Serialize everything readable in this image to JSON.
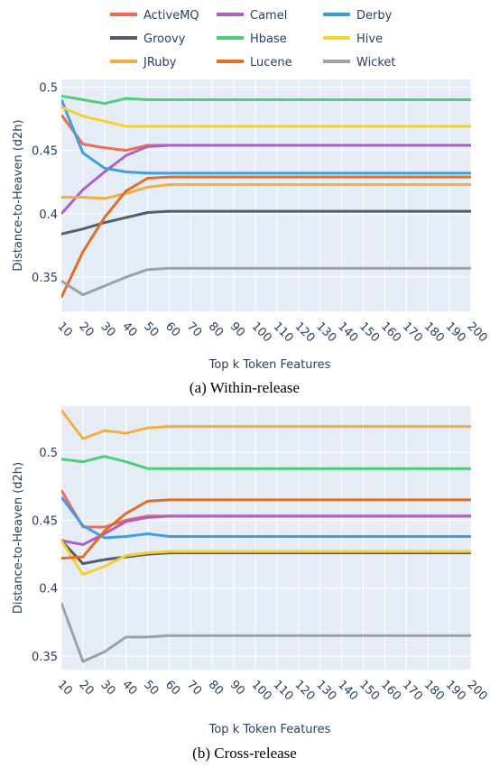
{
  "chart_data": [
    {
      "type": "line",
      "y_label": "Distance-to-Heaven (d2h)",
      "x_label": "Top k Token Features",
      "caption": "(a) Within-release",
      "x": [
        10,
        20,
        30,
        40,
        50,
        60,
        70,
        80,
        90,
        100,
        110,
        120,
        130,
        140,
        150,
        160,
        170,
        180,
        190,
        200
      ],
      "xlim": [
        10,
        200
      ],
      "xticks": [
        10,
        20,
        30,
        40,
        50,
        60,
        70,
        80,
        90,
        100,
        110,
        120,
        130,
        140,
        150,
        160,
        170,
        180,
        190,
        200
      ],
      "ylim": [
        0.323,
        0.506
      ],
      "yticks": [
        0.35,
        0.4,
        0.45,
        0.5
      ],
      "grid": true,
      "series": [
        {
          "name": "ActiveMQ",
          "color": "#ef6b5b",
          "values": [
            0.478,
            0.455,
            0.452,
            0.45,
            0.454,
            0.454,
            0.454,
            0.454,
            0.454,
            0.454,
            0.454,
            0.454,
            0.454,
            0.454,
            0.454,
            0.454,
            0.454,
            0.454,
            0.454,
            0.454
          ]
        },
        {
          "name": "Camel",
          "color": "#a962c5",
          "values": [
            0.4,
            0.419,
            0.433,
            0.446,
            0.453,
            0.454,
            0.454,
            0.454,
            0.454,
            0.454,
            0.454,
            0.454,
            0.454,
            0.454,
            0.454,
            0.454,
            0.454,
            0.454,
            0.454,
            0.454
          ]
        },
        {
          "name": "Derby",
          "color": "#3f9fdc",
          "values": [
            0.49,
            0.448,
            0.436,
            0.433,
            0.432,
            0.432,
            0.432,
            0.432,
            0.432,
            0.432,
            0.432,
            0.432,
            0.432,
            0.432,
            0.432,
            0.432,
            0.432,
            0.432,
            0.432,
            0.432
          ]
        },
        {
          "name": "Groovy",
          "color": "#535d6d",
          "values": [
            0.384,
            0.388,
            0.393,
            0.397,
            0.401,
            0.402,
            0.402,
            0.402,
            0.402,
            0.402,
            0.402,
            0.402,
            0.402,
            0.402,
            0.402,
            0.402,
            0.402,
            0.402,
            0.402,
            0.402
          ]
        },
        {
          "name": "Hbase",
          "color": "#4bcf7a",
          "values": [
            0.493,
            0.49,
            0.487,
            0.491,
            0.49,
            0.49,
            0.49,
            0.49,
            0.49,
            0.49,
            0.49,
            0.49,
            0.49,
            0.49,
            0.49,
            0.49,
            0.49,
            0.49,
            0.49,
            0.49
          ]
        },
        {
          "name": "Hive",
          "color": "#f4d032",
          "values": [
            0.484,
            0.477,
            0.473,
            0.469,
            0.469,
            0.469,
            0.469,
            0.469,
            0.469,
            0.469,
            0.469,
            0.469,
            0.469,
            0.469,
            0.469,
            0.469,
            0.469,
            0.469,
            0.469,
            0.469
          ]
        },
        {
          "name": "JRuby",
          "color": "#f3ae42",
          "values": [
            0.413,
            0.413,
            0.412,
            0.416,
            0.421,
            0.423,
            0.423,
            0.423,
            0.423,
            0.423,
            0.423,
            0.423,
            0.423,
            0.423,
            0.423,
            0.423,
            0.423,
            0.423,
            0.423,
            0.423
          ]
        },
        {
          "name": "Lucene",
          "color": "#df6e27",
          "values": [
            0.334,
            0.37,
            0.397,
            0.418,
            0.428,
            0.429,
            0.429,
            0.429,
            0.429,
            0.429,
            0.429,
            0.429,
            0.429,
            0.429,
            0.429,
            0.429,
            0.429,
            0.429,
            0.429,
            0.429
          ]
        },
        {
          "name": "Wicket",
          "color": "#9da2a7",
          "values": [
            0.347,
            0.336,
            0.343,
            0.35,
            0.356,
            0.357,
            0.357,
            0.357,
            0.357,
            0.357,
            0.357,
            0.357,
            0.357,
            0.357,
            0.357,
            0.357,
            0.357,
            0.357,
            0.357,
            0.357
          ]
        }
      ]
    },
    {
      "type": "line",
      "y_label": "Distance-to-Heaven (d2h)",
      "x_label": "Top k Token Features",
      "caption": "(b) Cross-release",
      "x": [
        10,
        20,
        30,
        40,
        50,
        60,
        70,
        80,
        90,
        100,
        110,
        120,
        130,
        140,
        150,
        160,
        170,
        180,
        190,
        200
      ],
      "xlim": [
        10,
        200
      ],
      "xticks": [
        10,
        20,
        30,
        40,
        50,
        60,
        70,
        80,
        90,
        100,
        110,
        120,
        130,
        140,
        150,
        160,
        170,
        180,
        190,
        200
      ],
      "ylim": [
        0.34,
        0.534
      ],
      "yticks": [
        0.35,
        0.4,
        0.45,
        0.5
      ],
      "grid": true,
      "series": [
        {
          "color": "#ef6b5b",
          "values": [
            0.472,
            0.445,
            0.445,
            0.45,
            0.453,
            0.453,
            0.453,
            0.453,
            0.453,
            0.453,
            0.453,
            0.453,
            0.453,
            0.453,
            0.453,
            0.453,
            0.453,
            0.453,
            0.453,
            0.453
          ]
        },
        {
          "color": "#a962c5",
          "values": [
            0.435,
            0.432,
            0.44,
            0.449,
            0.452,
            0.453,
            0.453,
            0.453,
            0.453,
            0.453,
            0.453,
            0.453,
            0.453,
            0.453,
            0.453,
            0.453,
            0.453,
            0.453,
            0.453,
            0.453
          ]
        },
        {
          "color": "#3f9fdc",
          "values": [
            0.467,
            0.446,
            0.437,
            0.438,
            0.44,
            0.438,
            0.438,
            0.438,
            0.438,
            0.438,
            0.438,
            0.438,
            0.438,
            0.438,
            0.438,
            0.438,
            0.438,
            0.438,
            0.438,
            0.438
          ]
        },
        {
          "color": "#535d6d",
          "values": [
            0.435,
            0.418,
            0.421,
            0.423,
            0.425,
            0.426,
            0.426,
            0.426,
            0.426,
            0.426,
            0.426,
            0.426,
            0.426,
            0.426,
            0.426,
            0.426,
            0.426,
            0.426,
            0.426,
            0.426
          ]
        },
        {
          "color": "#4bcf7a",
          "values": [
            0.495,
            0.493,
            0.497,
            0.493,
            0.488,
            0.488,
            0.488,
            0.488,
            0.488,
            0.488,
            0.488,
            0.488,
            0.488,
            0.488,
            0.488,
            0.488,
            0.488,
            0.488,
            0.488,
            0.488
          ]
        },
        {
          "color": "#f4d032",
          "values": [
            0.435,
            0.41,
            0.416,
            0.424,
            0.426,
            0.427,
            0.427,
            0.427,
            0.427,
            0.427,
            0.427,
            0.427,
            0.427,
            0.427,
            0.427,
            0.427,
            0.427,
            0.427,
            0.427,
            0.427
          ]
        },
        {
          "color": "#f3ae42",
          "values": [
            0.531,
            0.51,
            0.516,
            0.514,
            0.518,
            0.519,
            0.519,
            0.519,
            0.519,
            0.519,
            0.519,
            0.519,
            0.519,
            0.519,
            0.519,
            0.519,
            0.519,
            0.519,
            0.519,
            0.519
          ]
        },
        {
          "color": "#df6e27",
          "values": [
            0.422,
            0.423,
            0.442,
            0.455,
            0.464,
            0.465,
            0.465,
            0.465,
            0.465,
            0.465,
            0.465,
            0.465,
            0.465,
            0.465,
            0.465,
            0.465,
            0.465,
            0.465,
            0.465,
            0.465
          ]
        },
        {
          "color": "#9da2a7",
          "values": [
            0.389,
            0.346,
            0.353,
            0.364,
            0.364,
            0.365,
            0.365,
            0.365,
            0.365,
            0.365,
            0.365,
            0.365,
            0.365,
            0.365,
            0.365,
            0.365,
            0.365,
            0.365,
            0.365,
            0.365
          ]
        }
      ]
    }
  ]
}
